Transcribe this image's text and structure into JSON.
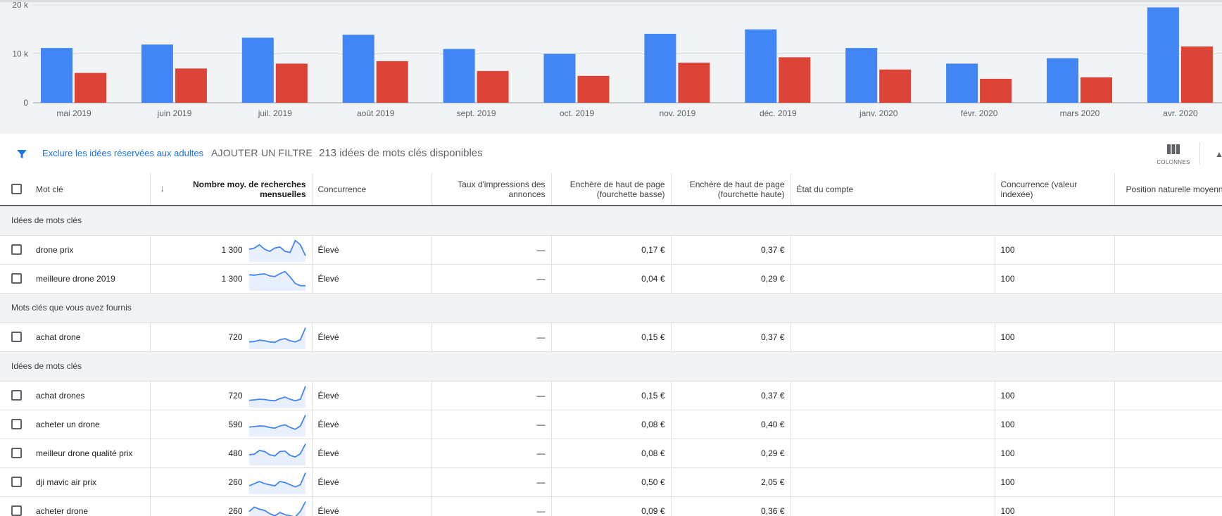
{
  "chart_data": {
    "type": "bar",
    "categories": [
      "mai 2019",
      "juin 2019",
      "juil. 2019",
      "août 2019",
      "sept. 2019",
      "oct. 2019",
      "nov. 2019",
      "déc. 2019",
      "janv. 2020",
      "févr. 2020",
      "mars 2020",
      "avr. 2020"
    ],
    "series": [
      {
        "values": [
          11200,
          11900,
          13300,
          13900,
          11000,
          10000,
          14100,
          15000,
          11200,
          8000,
          9100,
          19500
        ],
        "color": "#4285f4"
      },
      {
        "values": [
          6100,
          7000,
          8000,
          8500,
          6500,
          5500,
          8200,
          9300,
          6800,
          4900,
          5200,
          11500
        ],
        "color": "#db4437"
      }
    ],
    "y_ticks": [
      "0",
      "10 k",
      "20 k"
    ],
    "ylim": [
      0,
      20000
    ]
  },
  "toolbar": {
    "exclude_label": "Exclure les idées réservées aux adultes",
    "add_filter_label": "AJOUTER UN FILTRE",
    "ideas_count": "213 idées de mots clés disponibles",
    "columns_label": "COLONNES"
  },
  "table": {
    "headers": {
      "keyword": "Mot clé",
      "volume": "Nombre moy. de recherches mensuelles",
      "competition": "Concurrence",
      "impression_share": "Taux d'impressions des annonces",
      "bid_low": "Enchère de haut de page (fourchette basse)",
      "bid_high": "Enchère de haut de page (fourchette haute)",
      "account_status": "État du compte",
      "competition_index": "Concurrence (valeur indexée)",
      "organic_position": "Position naturelle moyenne"
    },
    "groups": [
      {
        "label": "Idées de mots clés",
        "rows": [
          {
            "keyword": "drone prix",
            "volume": "1 300",
            "trend": [
              0.55,
              0.6,
              0.75,
              0.55,
              0.45,
              0.6,
              0.65,
              0.45,
              0.4,
              0.95,
              0.75,
              0.25
            ],
            "competition": "Élevé",
            "impr": "—",
            "bid_low": "0,17 €",
            "bid_high": "0,37 €",
            "status": "",
            "comp_index": "100"
          },
          {
            "keyword": "meilleure drone 2019",
            "volume": "1 300",
            "trend": [
              0.7,
              0.68,
              0.72,
              0.74,
              0.65,
              0.62,
              0.75,
              0.85,
              0.6,
              0.3,
              0.2,
              0.2
            ],
            "competition": "Élevé",
            "impr": "—",
            "bid_low": "0,04 €",
            "bid_high": "0,29 €",
            "status": "",
            "comp_index": "100"
          }
        ]
      },
      {
        "label": "Mots clés que vous avez fournis",
        "rows": [
          {
            "keyword": "achat drone",
            "volume": "720",
            "trend": [
              0.3,
              0.32,
              0.38,
              0.35,
              0.3,
              0.28,
              0.4,
              0.45,
              0.35,
              0.3,
              0.4,
              0.95
            ],
            "competition": "Élevé",
            "impr": "—",
            "bid_low": "0,15 €",
            "bid_high": "0,37 €",
            "status": "",
            "comp_index": "100"
          }
        ]
      },
      {
        "label": "Idées de mots clés",
        "rows": [
          {
            "keyword": "achat drones",
            "volume": "720",
            "trend": [
              0.3,
              0.32,
              0.35,
              0.34,
              0.3,
              0.28,
              0.38,
              0.45,
              0.35,
              0.28,
              0.35,
              0.95
            ],
            "competition": "Élevé",
            "impr": "—",
            "bid_low": "0,15 €",
            "bid_high": "0,37 €",
            "status": "",
            "comp_index": "100"
          },
          {
            "keyword": "acheter un drone",
            "volume": "590",
            "trend": [
              0.4,
              0.42,
              0.45,
              0.44,
              0.38,
              0.35,
              0.45,
              0.5,
              0.38,
              0.3,
              0.45,
              0.95
            ],
            "competition": "Élevé",
            "impr": "—",
            "bid_low": "0,08 €",
            "bid_high": "0,40 €",
            "status": "",
            "comp_index": "100"
          },
          {
            "keyword": "meilleur drone qualité prix",
            "volume": "480",
            "trend": [
              0.45,
              0.48,
              0.65,
              0.6,
              0.45,
              0.4,
              0.6,
              0.62,
              0.42,
              0.35,
              0.5,
              0.95
            ],
            "competition": "Élevé",
            "impr": "—",
            "bid_low": "0,08 €",
            "bid_high": "0,29 €",
            "status": "",
            "comp_index": "100"
          },
          {
            "keyword": "dji mavic air prix",
            "volume": "260",
            "trend": [
              0.35,
              0.45,
              0.55,
              0.45,
              0.4,
              0.35,
              0.55,
              0.5,
              0.4,
              0.3,
              0.4,
              0.95
            ],
            "competition": "Élevé",
            "impr": "—",
            "bid_low": "0,50 €",
            "bid_high": "2,05 €",
            "status": "",
            "comp_index": "100"
          },
          {
            "keyword": "acheter drone",
            "volume": "260",
            "trend": [
              0.5,
              0.7,
              0.6,
              0.55,
              0.4,
              0.3,
              0.45,
              0.35,
              0.3,
              0.25,
              0.5,
              0.95
            ],
            "competition": "Élevé",
            "impr": "—",
            "bid_low": "0,09 €",
            "bid_high": "0,36 €",
            "status": "",
            "comp_index": "100"
          }
        ]
      }
    ]
  }
}
